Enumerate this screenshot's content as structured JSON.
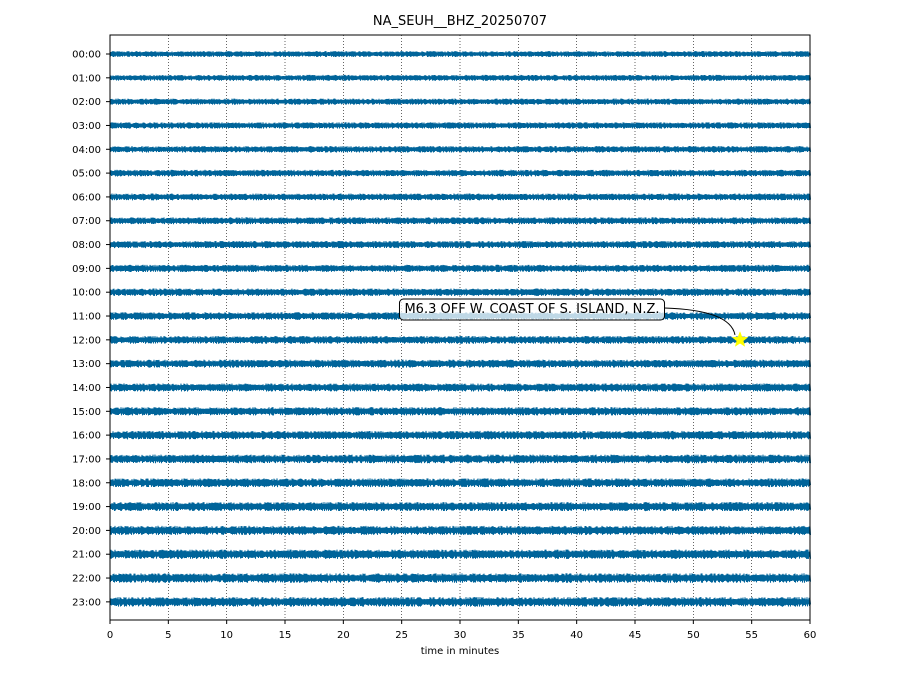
{
  "chart_data": {
    "type": "line",
    "title": "NA_SEUH__BHZ_20250707",
    "xlabel": "time in minutes",
    "ylabel": "",
    "xlim": [
      0,
      60
    ],
    "x_ticks": [
      "0",
      "5",
      "10",
      "15",
      "20",
      "25",
      "30",
      "35",
      "40",
      "45",
      "50",
      "55",
      "60"
    ],
    "y_tick_labels": [
      "00:00",
      "01:00",
      "02:00",
      "03:00",
      "04:00",
      "05:00",
      "06:00",
      "07:00",
      "08:00",
      "09:00",
      "10:00",
      "11:00",
      "12:00",
      "13:00",
      "14:00",
      "15:00",
      "16:00",
      "17:00",
      "18:00",
      "19:00",
      "20:00",
      "21:00",
      "22:00",
      "23:00"
    ],
    "trace_color": "#00649a",
    "grid": "vertical dotted at every 5 minutes",
    "annotation": {
      "text": "M6.3 OFF W. COAST OF S. ISLAND, N.Z.",
      "event_hour": "12:00",
      "event_minute": 54,
      "marker": "star",
      "marker_color": "#ffff00"
    }
  }
}
